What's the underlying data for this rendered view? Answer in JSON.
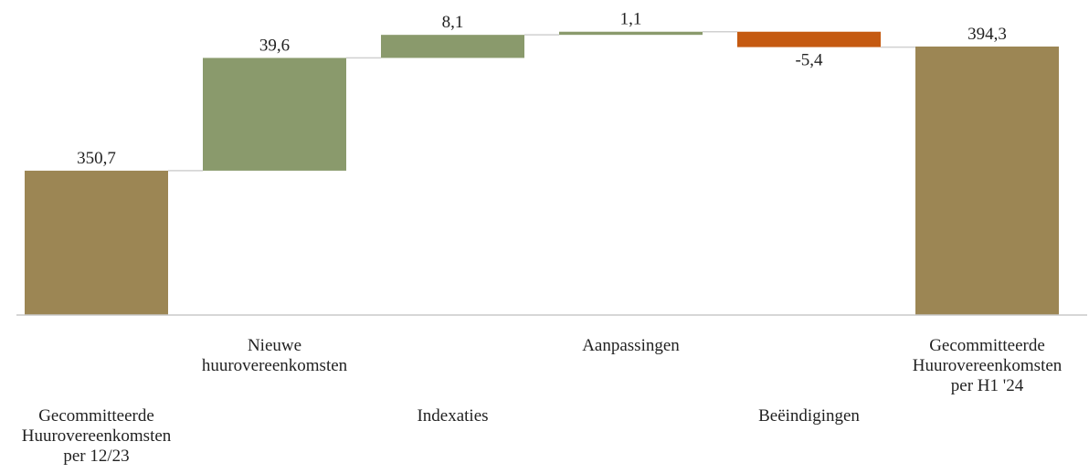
{
  "chart_data": {
    "type": "waterfall",
    "categories": [
      "Gecommitteerde\nHuurovereenkomsten\nper 12/23",
      "Nieuwe\nhuurovereenkomsten",
      "Indexaties",
      "Aanpassingen",
      "Beëindigingen",
      "Gecommitteerde\nHuurovereenkomsten\nper H1 '24"
    ],
    "values": [
      350.7,
      39.6,
      8.1,
      1.1,
      -5.4,
      394.3
    ],
    "value_labels": [
      "350,7",
      "39,6",
      "8,1",
      "1,1",
      "-5,4",
      "394,3"
    ],
    "totals": [
      true,
      false,
      false,
      false,
      false,
      true
    ],
    "colors": {
      "total": "#9c8654",
      "increase": "#8a9a6c",
      "decrease": "#c55a11"
    },
    "ylim": [
      300,
      410
    ],
    "grid": false
  }
}
